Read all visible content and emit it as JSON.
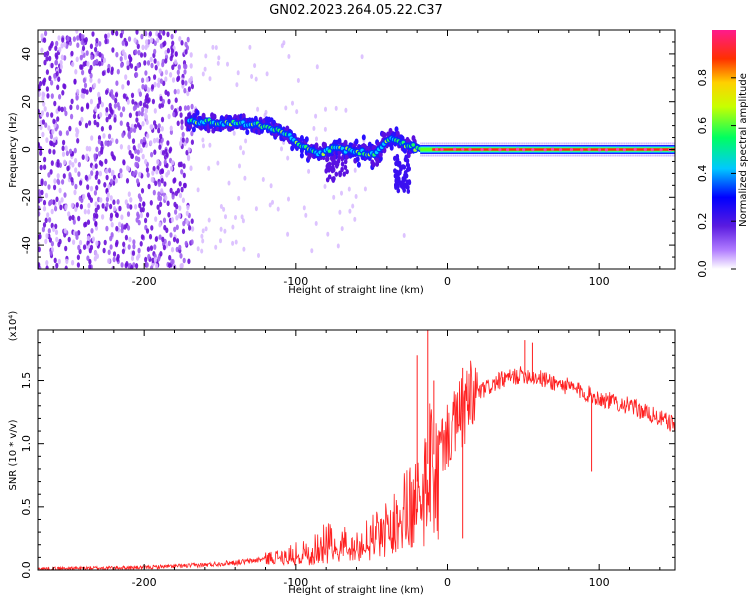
{
  "figure": {
    "title": "GN02.2023.264.05.22.C37"
  },
  "chart_data": [
    {
      "type": "heatmap",
      "title": "GN02.2023.264.05.22.C37",
      "xlabel": "Height of straight line (km)",
      "ylabel": "Frequency (Hz)",
      "xlim": [
        -270,
        150
      ],
      "ylim": [
        -50,
        50
      ],
      "x_ticks": [
        -200,
        -100,
        0,
        100
      ],
      "x_tick_labels": [
        "-200",
        "-100",
        "0",
        "100"
      ],
      "y_ticks": [
        -40,
        -20,
        0,
        20,
        40
      ],
      "y_tick_labels": [
        "-40",
        "-20",
        "0",
        "20",
        "40"
      ],
      "colorbar": {
        "label": "Normalized spectral amplitude",
        "range": [
          0,
          1
        ],
        "ticks": [
          0.0,
          0.2,
          0.4,
          0.6,
          0.8
        ],
        "tick_labels": [
          "0.0",
          "0.2",
          "0.4",
          "0.6",
          "0.8"
        ],
        "colors": [
          "#ffffff",
          "#8a2be2",
          "#0000ff",
          "#00ffff",
          "#00ff00",
          "#ffff00",
          "#ff0000",
          "#ff1493"
        ]
      },
      "frequency_ridge": [
        {
          "x": -170,
          "y": 12
        },
        {
          "x": -150,
          "y": 11
        },
        {
          "x": -135,
          "y": 11
        },
        {
          "x": -120,
          "y": 10
        },
        {
          "x": -105,
          "y": 6
        },
        {
          "x": -95,
          "y": 1
        },
        {
          "x": -85,
          "y": -2
        },
        {
          "x": -75,
          "y": 1
        },
        {
          "x": -60,
          "y": -1
        },
        {
          "x": -48,
          "y": -2
        },
        {
          "x": -38,
          "y": 5
        },
        {
          "x": -28,
          "y": 2
        },
        {
          "x": -15,
          "y": 0
        },
        {
          "x": 0,
          "y": 0
        },
        {
          "x": 50,
          "y": 0
        },
        {
          "x": 100,
          "y": 0
        },
        {
          "x": 150,
          "y": 0
        }
      ],
      "noise_region": {
        "x": [
          -270,
          -168
        ],
        "y": [
          -50,
          50
        ]
      }
    },
    {
      "type": "line",
      "xlabel": "Height of straight line (km)",
      "ylabel": "SNR (10 * v/v)",
      "y_multiplier": "(x10⁴)",
      "xlim": [
        -270,
        150
      ],
      "ylim": [
        0,
        1.9
      ],
      "x_ticks": [
        -200,
        -100,
        0,
        100
      ],
      "x_tick_labels": [
        "-200",
        "-100",
        "0",
        "100"
      ],
      "y_ticks": [
        0.0,
        0.5,
        1.0,
        1.5
      ],
      "y_tick_labels": [
        "0.0",
        "0.5",
        "1.0",
        "1.5"
      ],
      "color": "#ff2020",
      "series_envelope": [
        {
          "x": -270,
          "y": 0.01
        },
        {
          "x": -200,
          "y": 0.02
        },
        {
          "x": -160,
          "y": 0.04
        },
        {
          "x": -130,
          "y": 0.07
        },
        {
          "x": -110,
          "y": 0.11
        },
        {
          "x": -90,
          "y": 0.18
        },
        {
          "x": -80,
          "y": 0.25
        },
        {
          "x": -70,
          "y": 0.22
        },
        {
          "x": -60,
          "y": 0.25
        },
        {
          "x": -50,
          "y": 0.28
        },
        {
          "x": -40,
          "y": 0.35
        },
        {
          "x": -30,
          "y": 0.5
        },
        {
          "x": -20,
          "y": 0.7
        },
        {
          "x": -10,
          "y": 0.9
        },
        {
          "x": 0,
          "y": 1.05
        },
        {
          "x": 10,
          "y": 1.25
        },
        {
          "x": 20,
          "y": 1.4
        },
        {
          "x": 35,
          "y": 1.5
        },
        {
          "x": 50,
          "y": 1.55
        },
        {
          "x": 60,
          "y": 1.52
        },
        {
          "x": 80,
          "y": 1.45
        },
        {
          "x": 100,
          "y": 1.36
        },
        {
          "x": 120,
          "y": 1.3
        },
        {
          "x": 140,
          "y": 1.2
        },
        {
          "x": 150,
          "y": 1.15
        }
      ],
      "spikes": [
        {
          "x": -20,
          "y": 1.7
        },
        {
          "x": -13,
          "y": 1.95
        },
        {
          "x": -9,
          "y": 1.5
        },
        {
          "x": 10,
          "y": 1.6
        },
        {
          "x": 51,
          "y": 1.82
        },
        {
          "x": 56,
          "y": 1.8
        },
        {
          "x": 95,
          "y": 0.78
        },
        {
          "x": 10,
          "y": 0.25
        }
      ]
    }
  ]
}
